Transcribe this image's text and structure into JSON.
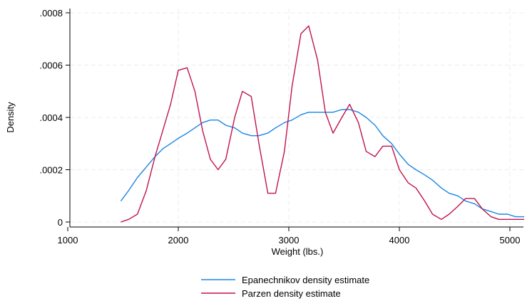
{
  "chart_data": {
    "type": "line",
    "xlabel": "Weight (lbs.)",
    "ylabel": "Density",
    "xlim": [
      1000,
      5200
    ],
    "ylim": [
      0,
      0.0008
    ],
    "x_ticks": [
      1000,
      2000,
      3000,
      4000,
      5000
    ],
    "x_tick_labels": [
      "1000",
      "2000",
      "3000",
      "4000",
      "5000"
    ],
    "y_ticks": [
      0,
      0.0002,
      0.0004,
      0.0006,
      0.0008
    ],
    "y_tick_labels": [
      "0",
      ".0002",
      ".0004",
      ".0006",
      ".0008"
    ],
    "grid": true,
    "legend_position": "bottom",
    "series": [
      {
        "name": "Epanechnikov density estimate",
        "color": "#1a85e6",
        "x": [
          1480,
          1550,
          1630,
          1710,
          1790,
          1860,
          1930,
          2000,
          2080,
          2150,
          2220,
          2290,
          2360,
          2430,
          2510,
          2580,
          2660,
          2730,
          2810,
          2880,
          2960,
          3030,
          3110,
          3180,
          3260,
          3330,
          3400,
          3480,
          3550,
          3630,
          3700,
          3780,
          3850,
          3930,
          4000,
          4080,
          4150,
          4230,
          4300,
          4380,
          4450,
          4530,
          4600,
          4680,
          4750,
          4830,
          4900,
          4980,
          5050,
          5130
        ],
        "y": [
          8e-05,
          0.00012,
          0.00017,
          0.00021,
          0.00025,
          0.00028,
          0.0003,
          0.00032,
          0.00034,
          0.00036,
          0.00038,
          0.00039,
          0.00039,
          0.00037,
          0.00036,
          0.00034,
          0.00033,
          0.00033,
          0.00034,
          0.00036,
          0.00038,
          0.00039,
          0.00041,
          0.00042,
          0.00042,
          0.00042,
          0.00042,
          0.00043,
          0.00043,
          0.00042,
          0.0004,
          0.00037,
          0.00033,
          0.0003,
          0.00026,
          0.00022,
          0.0002,
          0.00018,
          0.00016,
          0.00013,
          0.00011,
          0.0001,
          8e-05,
          7e-05,
          5e-05,
          4e-05,
          3e-05,
          3e-05,
          2e-05,
          2e-05
        ]
      },
      {
        "name": "Parzen density estimate",
        "color": "#c0134f",
        "x": [
          1480,
          1550,
          1630,
          1710,
          1790,
          1860,
          1930,
          2000,
          2080,
          2150,
          2220,
          2290,
          2360,
          2430,
          2510,
          2580,
          2660,
          2730,
          2810,
          2880,
          2960,
          3030,
          3110,
          3180,
          3260,
          3330,
          3400,
          3480,
          3550,
          3630,
          3700,
          3780,
          3850,
          3930,
          4000,
          4080,
          4150,
          4230,
          4300,
          4380,
          4450,
          4530,
          4600,
          4680,
          4750,
          4830,
          4900,
          4980,
          5050,
          5130
        ],
        "y": [
          0.0,
          1e-05,
          3e-05,
          0.00012,
          0.00025,
          0.00035,
          0.00045,
          0.00058,
          0.00059,
          0.0005,
          0.00035,
          0.00024,
          0.0002,
          0.00024,
          0.0004,
          0.0005,
          0.00048,
          0.0003,
          0.00011,
          0.00011,
          0.00027,
          0.00052,
          0.00072,
          0.00075,
          0.00062,
          0.00042,
          0.00034,
          0.0004,
          0.00045,
          0.00038,
          0.00027,
          0.00025,
          0.00029,
          0.00029,
          0.0002,
          0.00015,
          0.00013,
          8e-05,
          3e-05,
          1e-05,
          3e-05,
          6e-05,
          9e-05,
          9e-05,
          5e-05,
          2e-05,
          1e-05,
          1e-05,
          1e-05,
          1e-05
        ]
      }
    ]
  }
}
